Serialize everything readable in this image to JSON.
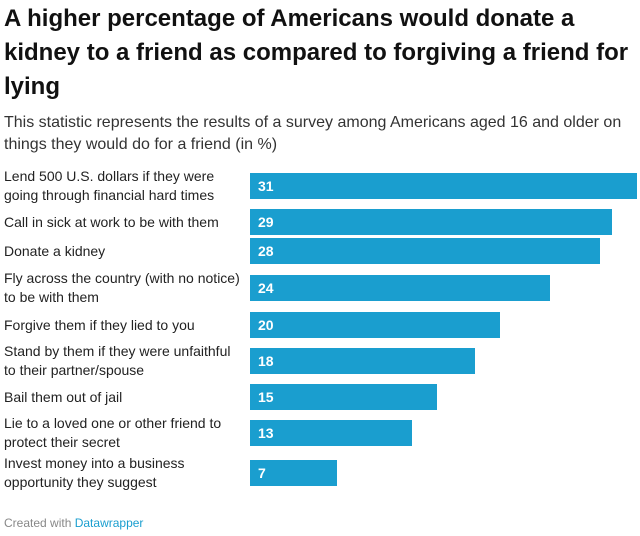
{
  "header": {
    "title": "A higher percentage of Americans would donate a kidney to a friend as compared to forgiving a friend for lying",
    "subtitle": "This statistic represents the results of a survey among Americans aged 16 and older on things they would do for a friend (in %)"
  },
  "footer": {
    "prefix": "Created with",
    "brand": "Datawrapper"
  },
  "colors": {
    "bar": "#1a9ecf",
    "value_text": "#ffffff"
  },
  "chart_data": {
    "type": "bar",
    "orientation": "horizontal",
    "title": "A higher percentage of Americans would donate a kidney to a friend as compared to forgiving a friend for lying",
    "subtitle": "This statistic represents the results of a survey among Americans aged 16 and older on things they would do for a friend (in %)",
    "xlabel": "",
    "ylabel": "",
    "xlim": [
      0,
      31
    ],
    "categories": [
      "Lend 500 U.S. dollars if they were going through financial hard times",
      "Call in sick at work to be with them",
      "Donate a kidney",
      "Fly across the country (with no notice) to be with them",
      "Forgive them if they lied to you",
      "Stand by them if they were unfaithful to their partner/spouse",
      "Bail them out of jail",
      "Lie to a loved one or other friend to protect their secret",
      "Invest money into a business opportunity they suggest"
    ],
    "values": [
      31,
      29,
      28,
      24,
      20,
      18,
      15,
      13,
      7
    ],
    "unit": "%"
  }
}
